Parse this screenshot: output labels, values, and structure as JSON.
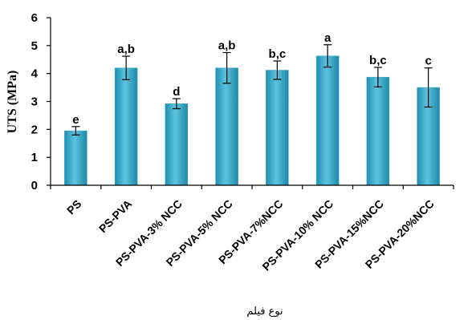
{
  "chart_data": {
    "type": "bar",
    "ylabel": "UTS (MPa)",
    "xlabel": "نوع فیلم",
    "ylim": [
      0,
      6
    ],
    "yticks": [
      "0",
      "1",
      "2",
      "3",
      "4",
      "5",
      "6"
    ],
    "categories": [
      "PS",
      "PS-PVA",
      "PS-PVA-3% NCC",
      "PS-PVA-5% NCC",
      "PS-PVA-7%NCC",
      "PS-PVA-10% NCC",
      "PS-PVA-15%NCC",
      "PS-PVA-20%NCC"
    ],
    "values": [
      1.95,
      4.2,
      2.92,
      4.2,
      4.12,
      4.63,
      3.87,
      3.5
    ],
    "errors": [
      0.15,
      0.42,
      0.18,
      0.55,
      0.33,
      0.4,
      0.35,
      0.7
    ],
    "significance_labels": [
      "e",
      "a,b",
      "d",
      "a,b",
      "b,c",
      "a",
      "b,c",
      "c"
    ],
    "bar_color": "#35aacb",
    "grid": false
  }
}
